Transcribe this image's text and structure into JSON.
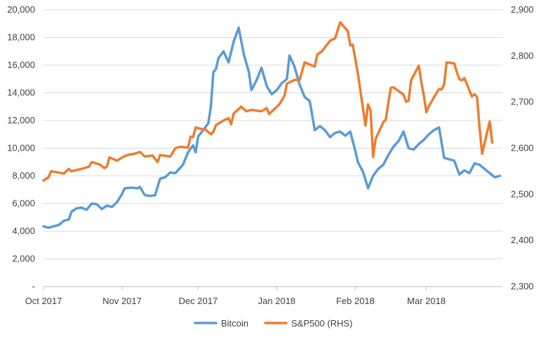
{
  "chart_data": {
    "type": "line",
    "title": "",
    "xlabel": "",
    "ylabel": "",
    "x_ticks": [
      "Oct 2017",
      "Nov 2017",
      "Dec 2017",
      "Jan 2018",
      "Feb 2018",
      "Mar 2018"
    ],
    "x_range": [
      "2017-10-01",
      "2018-03-31"
    ],
    "y_left": {
      "ticks": [
        "-",
        "2,000",
        "4,000",
        "6,000",
        "8,000",
        "10,000",
        "12,000",
        "14,000",
        "16,000",
        "18,000",
        "20,000"
      ],
      "range": [
        0,
        20000
      ]
    },
    "y_right": {
      "ticks": [
        "2,300",
        "2,400",
        "2,500",
        "2,600",
        "2,700",
        "2,800",
        "2,900"
      ],
      "range": [
        2300,
        2900
      ]
    },
    "grid": true,
    "legend": "bottom",
    "series": [
      {
        "name": "Bitcoin",
        "axis": "left",
        "color": "#5b9bd5",
        "points": [
          [
            "2017-10-01",
            4350
          ],
          [
            "2017-10-03",
            4250
          ],
          [
            "2017-10-05",
            4350
          ],
          [
            "2017-10-07",
            4450
          ],
          [
            "2017-10-09",
            4750
          ],
          [
            "2017-10-11",
            4850
          ],
          [
            "2017-10-12",
            5400
          ],
          [
            "2017-10-14",
            5650
          ],
          [
            "2017-10-16",
            5700
          ],
          [
            "2017-10-18",
            5550
          ],
          [
            "2017-10-20",
            6000
          ],
          [
            "2017-10-22",
            5950
          ],
          [
            "2017-10-24",
            5600
          ],
          [
            "2017-10-26",
            5850
          ],
          [
            "2017-10-28",
            5750
          ],
          [
            "2017-10-30",
            6100
          ],
          [
            "2017-11-01",
            6700
          ],
          [
            "2017-11-02",
            7100
          ],
          [
            "2017-11-05",
            7150
          ],
          [
            "2017-11-07",
            7100
          ],
          [
            "2017-11-08",
            7200
          ],
          [
            "2017-11-10",
            6600
          ],
          [
            "2017-11-12",
            6550
          ],
          [
            "2017-11-14",
            6600
          ],
          [
            "2017-11-16",
            7800
          ],
          [
            "2017-11-18",
            7900
          ],
          [
            "2017-11-20",
            8250
          ],
          [
            "2017-11-22",
            8200
          ],
          [
            "2017-11-25",
            8800
          ],
          [
            "2017-11-27",
            9700
          ],
          [
            "2017-11-29",
            10200
          ],
          [
            "2017-11-30",
            9700
          ],
          [
            "2017-12-01",
            10850
          ],
          [
            "2017-12-03",
            11300
          ],
          [
            "2017-12-05",
            11800
          ],
          [
            "2017-12-06",
            13000
          ],
          [
            "2017-12-07",
            15500
          ],
          [
            "2017-12-08",
            15700
          ],
          [
            "2017-12-09",
            16500
          ],
          [
            "2017-12-11",
            17000
          ],
          [
            "2017-12-13",
            16200
          ],
          [
            "2017-12-15",
            17700
          ],
          [
            "2017-12-17",
            18700
          ],
          [
            "2017-12-19",
            16800
          ],
          [
            "2017-12-21",
            15500
          ],
          [
            "2017-12-22",
            14200
          ],
          [
            "2017-12-24",
            14900
          ],
          [
            "2017-12-26",
            15800
          ],
          [
            "2017-12-28",
            14500
          ],
          [
            "2017-12-30",
            13900
          ],
          [
            "2018-01-01",
            14200
          ],
          [
            "2018-01-03",
            14700
          ],
          [
            "2018-01-05",
            15000
          ],
          [
            "2018-01-06",
            16700
          ],
          [
            "2018-01-08",
            15900
          ],
          [
            "2018-01-10",
            14600
          ],
          [
            "2018-01-12",
            13700
          ],
          [
            "2018-01-14",
            13400
          ],
          [
            "2018-01-16",
            11300
          ],
          [
            "2018-01-18",
            11600
          ],
          [
            "2018-01-20",
            11300
          ],
          [
            "2018-01-22",
            10800
          ],
          [
            "2018-01-24",
            11100
          ],
          [
            "2018-01-26",
            11200
          ],
          [
            "2018-01-28",
            10900
          ],
          [
            "2018-01-30",
            11200
          ],
          [
            "2018-02-01",
            9800
          ],
          [
            "2018-02-02",
            9000
          ],
          [
            "2018-02-04",
            8300
          ],
          [
            "2018-02-06",
            7100
          ],
          [
            "2018-02-08",
            8000
          ],
          [
            "2018-02-10",
            8500
          ],
          [
            "2018-02-12",
            8800
          ],
          [
            "2018-02-14",
            9500
          ],
          [
            "2018-02-16",
            10100
          ],
          [
            "2018-02-18",
            10500
          ],
          [
            "2018-02-20",
            11200
          ],
          [
            "2018-02-22",
            10000
          ],
          [
            "2018-02-24",
            9900
          ],
          [
            "2018-02-26",
            10300
          ],
          [
            "2018-02-28",
            10600
          ],
          [
            "2018-03-02",
            11000
          ],
          [
            "2018-03-04",
            11300
          ],
          [
            "2018-03-06",
            11500
          ],
          [
            "2018-03-08",
            9300
          ],
          [
            "2018-03-10",
            9200
          ],
          [
            "2018-03-12",
            9100
          ],
          [
            "2018-03-14",
            8100
          ],
          [
            "2018-03-16",
            8400
          ],
          [
            "2018-03-18",
            8200
          ],
          [
            "2018-03-20",
            8900
          ],
          [
            "2018-03-22",
            8800
          ],
          [
            "2018-03-24",
            8500
          ],
          [
            "2018-03-26",
            8200
          ],
          [
            "2018-03-28",
            7900
          ],
          [
            "2018-03-30",
            8000
          ]
        ]
      },
      {
        "name": "S&P500 (RHS)",
        "axis": "right",
        "color": "#ed7d31",
        "points": [
          [
            "2017-10-01",
            2530
          ],
          [
            "2017-10-03",
            2537
          ],
          [
            "2017-10-04",
            2550
          ],
          [
            "2017-10-06",
            2548
          ],
          [
            "2017-10-09",
            2545
          ],
          [
            "2017-10-11",
            2555
          ],
          [
            "2017-10-12",
            2550
          ],
          [
            "2017-10-16",
            2555
          ],
          [
            "2017-10-19",
            2560
          ],
          [
            "2017-10-20",
            2570
          ],
          [
            "2017-10-23",
            2565
          ],
          [
            "2017-10-25",
            2557
          ],
          [
            "2017-10-26",
            2560
          ],
          [
            "2017-10-27",
            2580
          ],
          [
            "2017-10-30",
            2573
          ],
          [
            "2017-11-01",
            2580
          ],
          [
            "2017-11-03",
            2585
          ],
          [
            "2017-11-06",
            2588
          ],
          [
            "2017-11-08",
            2592
          ],
          [
            "2017-11-10",
            2582
          ],
          [
            "2017-11-13",
            2584
          ],
          [
            "2017-11-15",
            2570
          ],
          [
            "2017-11-16",
            2585
          ],
          [
            "2017-11-20",
            2582
          ],
          [
            "2017-11-22",
            2600
          ],
          [
            "2017-11-24",
            2603
          ],
          [
            "2017-11-27",
            2601
          ],
          [
            "2017-11-28",
            2625
          ],
          [
            "2017-11-29",
            2624
          ],
          [
            "2017-11-30",
            2645
          ],
          [
            "2017-12-02",
            2642
          ],
          [
            "2017-12-04",
            2640
          ],
          [
            "2017-12-06",
            2630
          ],
          [
            "2017-12-07",
            2636
          ],
          [
            "2017-12-08",
            2650
          ],
          [
            "2017-12-11",
            2660
          ],
          [
            "2017-12-13",
            2665
          ],
          [
            "2017-12-14",
            2652
          ],
          [
            "2017-12-15",
            2675
          ],
          [
            "2017-12-18",
            2690
          ],
          [
            "2017-12-20",
            2680
          ],
          [
            "2017-12-22",
            2683
          ],
          [
            "2017-12-26",
            2680
          ],
          [
            "2017-12-28",
            2687
          ],
          [
            "2017-12-29",
            2674
          ],
          [
            "2018-01-02",
            2695
          ],
          [
            "2018-01-04",
            2713
          ],
          [
            "2018-01-05",
            2740
          ],
          [
            "2018-01-08",
            2748
          ],
          [
            "2018-01-10",
            2748
          ],
          [
            "2018-01-11",
            2767
          ],
          [
            "2018-01-12",
            2786
          ],
          [
            "2018-01-16",
            2777
          ],
          [
            "2018-01-17",
            2803
          ],
          [
            "2018-01-19",
            2811
          ],
          [
            "2018-01-22",
            2833
          ],
          [
            "2018-01-24",
            2838
          ],
          [
            "2018-01-26",
            2873
          ],
          [
            "2018-01-29",
            2854
          ],
          [
            "2018-01-30",
            2823
          ],
          [
            "2018-01-31",
            2824
          ],
          [
            "2018-02-02",
            2762
          ],
          [
            "2018-02-05",
            2649
          ],
          [
            "2018-02-06",
            2695
          ],
          [
            "2018-02-07",
            2682
          ],
          [
            "2018-02-08",
            2581
          ],
          [
            "2018-02-09",
            2620
          ],
          [
            "2018-02-12",
            2656
          ],
          [
            "2018-02-13",
            2662
          ],
          [
            "2018-02-14",
            2698
          ],
          [
            "2018-02-15",
            2731
          ],
          [
            "2018-02-16",
            2732
          ],
          [
            "2018-02-20",
            2716
          ],
          [
            "2018-02-21",
            2701
          ],
          [
            "2018-02-22",
            2703
          ],
          [
            "2018-02-23",
            2747
          ],
          [
            "2018-02-26",
            2779
          ],
          [
            "2018-02-27",
            2744
          ],
          [
            "2018-02-28",
            2714
          ],
          [
            "2018-03-01",
            2678
          ],
          [
            "2018-03-02",
            2691
          ],
          [
            "2018-03-05",
            2720
          ],
          [
            "2018-03-06",
            2728
          ],
          [
            "2018-03-07",
            2727
          ],
          [
            "2018-03-08",
            2738
          ],
          [
            "2018-03-09",
            2786
          ],
          [
            "2018-03-12",
            2784
          ],
          [
            "2018-03-13",
            2765
          ],
          [
            "2018-03-14",
            2750
          ],
          [
            "2018-03-15",
            2747
          ],
          [
            "2018-03-16",
            2752
          ],
          [
            "2018-03-19",
            2712
          ],
          [
            "2018-03-20",
            2717
          ],
          [
            "2018-03-21",
            2711
          ],
          [
            "2018-03-22",
            2643
          ],
          [
            "2018-03-23",
            2588
          ],
          [
            "2018-03-26",
            2658
          ],
          [
            "2018-03-27",
            2612
          ]
        ]
      }
    ]
  }
}
